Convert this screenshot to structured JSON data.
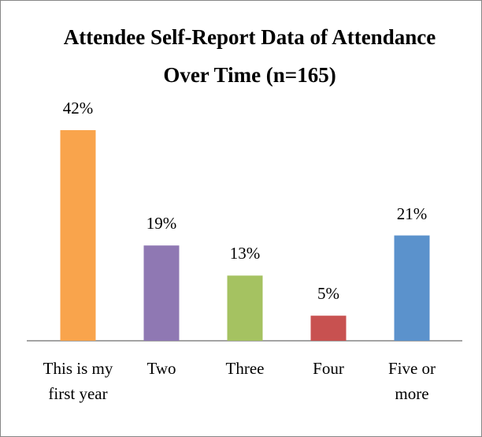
{
  "chart_data": {
    "type": "bar",
    "title": "Attendee Self-Report Data of Attendance Over Time (n=165)",
    "categories": [
      "This is my first year",
      "Two",
      "Three",
      "Four",
      "Five or more"
    ],
    "values": [
      42,
      19,
      13,
      5,
      21
    ],
    "value_labels": [
      "42%",
      "19%",
      "13%",
      "5%",
      "21%"
    ],
    "colors": [
      "#f9a44c",
      "#8f78b3",
      "#a5c261",
      "#c85150",
      "#5b92cc"
    ]
  }
}
